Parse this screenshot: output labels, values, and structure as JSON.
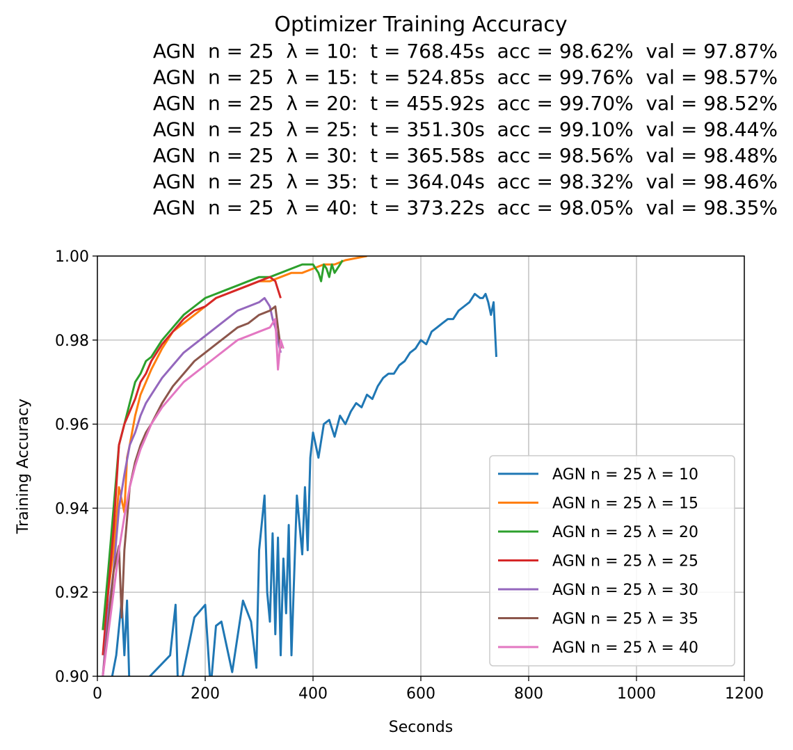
{
  "chart_data": {
    "type": "line",
    "title": "Optimizer Training Accuracy",
    "subtitle_lines": [
      "AGN  n = 25  λ = 10:  t = 768.45s  acc = 98.62%  val = 97.87%",
      "AGN  n = 25  λ = 15:  t = 524.85s  acc = 99.76%  val = 98.57%",
      "AGN  n = 25  λ = 20:  t = 455.92s  acc = 99.70%  val = 98.52%",
      "AGN  n = 25  λ = 25:  t = 351.30s  acc = 99.10%  val = 98.44%",
      "AGN  n = 25  λ = 30:  t = 365.58s  acc = 98.56%  val = 98.48%",
      "AGN  n = 25  λ = 35:  t = 364.04s  acc = 98.32%  val = 98.46%",
      "AGN  n = 25  λ = 40:  t = 373.22s  acc = 98.05%  val = 98.35%"
    ],
    "xlabel": "Seconds",
    "ylabel": "Training Accuracy",
    "xlim": [
      0,
      1200
    ],
    "ylim": [
      0.9,
      1.0
    ],
    "xticks": [
      0,
      200,
      400,
      600,
      800,
      1000,
      1200
    ],
    "xtick_labels": [
      "0",
      "200",
      "400",
      "600",
      "800",
      "1000",
      "1200"
    ],
    "yticks": [
      0.9,
      0.92,
      0.94,
      0.96,
      0.98,
      1.0
    ],
    "ytick_labels": [
      "0.90",
      "0.92",
      "0.94",
      "0.96",
      "0.98",
      "1.00"
    ],
    "grid": true,
    "legend_position": "lower-right",
    "series": [
      {
        "name": "AGN n = 25 λ = 10",
        "color": "#1f77b4",
        "x": [
          10,
          20,
          35,
          45,
          50,
          55,
          60,
          135,
          145,
          150,
          180,
          200,
          210,
          220,
          230,
          250,
          270,
          285,
          295,
          300,
          310,
          315,
          320,
          325,
          330,
          335,
          340,
          345,
          350,
          355,
          360,
          370,
          380,
          385,
          390,
          395,
          400,
          410,
          420,
          430,
          440,
          450,
          460,
          470,
          480,
          490,
          500,
          510,
          520,
          530,
          540,
          550,
          560,
          570,
          580,
          590,
          600,
          610,
          620,
          630,
          640,
          650,
          660,
          670,
          680,
          690,
          700,
          710,
          715,
          720,
          725,
          730,
          735,
          740
        ],
        "y": [
          0.895,
          0.895,
          0.905,
          0.918,
          0.905,
          0.918,
          0.895,
          0.905,
          0.917,
          0.895,
          0.914,
          0.917,
          0.897,
          0.912,
          0.913,
          0.901,
          0.918,
          0.913,
          0.902,
          0.93,
          0.943,
          0.92,
          0.913,
          0.934,
          0.91,
          0.933,
          0.905,
          0.928,
          0.915,
          0.936,
          0.905,
          0.943,
          0.929,
          0.945,
          0.93,
          0.952,
          0.958,
          0.952,
          0.96,
          0.961,
          0.957,
          0.962,
          0.96,
          0.963,
          0.965,
          0.964,
          0.967,
          0.966,
          0.969,
          0.971,
          0.972,
          0.972,
          0.974,
          0.975,
          0.977,
          0.978,
          0.98,
          0.979,
          0.982,
          0.983,
          0.984,
          0.985,
          0.985,
          0.987,
          0.988,
          0.989,
          0.991,
          0.99,
          0.99,
          0.991,
          0.989,
          0.986,
          0.989,
          0.976
        ]
      },
      {
        "name": "AGN n = 25 λ = 15",
        "color": "#ff7f0e",
        "x": [
          10,
          20,
          30,
          40,
          50,
          55,
          60,
          70,
          80,
          90,
          100,
          120,
          140,
          160,
          180,
          200,
          220,
          240,
          260,
          280,
          300,
          320,
          340,
          360,
          380,
          400,
          420,
          440,
          460,
          480,
          500
        ],
        "y": [
          0.911,
          0.92,
          0.93,
          0.945,
          0.939,
          0.952,
          0.955,
          0.962,
          0.967,
          0.97,
          0.973,
          0.978,
          0.982,
          0.984,
          0.986,
          0.988,
          0.99,
          0.991,
          0.992,
          0.993,
          0.994,
          0.994,
          0.995,
          0.996,
          0.996,
          0.997,
          0.998,
          0.998,
          0.999,
          0.9995,
          1.0
        ]
      },
      {
        "name": "AGN n = 25 λ = 20",
        "color": "#2ca02c",
        "x": [
          10,
          20,
          30,
          40,
          50,
          60,
          70,
          80,
          90,
          100,
          120,
          140,
          160,
          180,
          200,
          220,
          240,
          260,
          280,
          300,
          320,
          340,
          360,
          380,
          400,
          410,
          415,
          420,
          425,
          430,
          435,
          440,
          450,
          455
        ],
        "y": [
          0.911,
          0.925,
          0.94,
          0.955,
          0.96,
          0.965,
          0.97,
          0.972,
          0.975,
          0.976,
          0.98,
          0.983,
          0.986,
          0.988,
          0.99,
          0.991,
          0.992,
          0.993,
          0.994,
          0.995,
          0.995,
          0.996,
          0.997,
          0.998,
          0.998,
          0.996,
          0.994,
          0.998,
          0.997,
          0.995,
          0.998,
          0.996,
          0.998,
          0.999
        ]
      },
      {
        "name": "AGN n = 25 λ = 25",
        "color": "#d62728",
        "x": [
          10,
          20,
          30,
          40,
          50,
          60,
          70,
          80,
          90,
          100,
          120,
          140,
          160,
          180,
          200,
          220,
          240,
          260,
          280,
          300,
          320,
          330,
          335,
          340
        ],
        "y": [
          0.905,
          0.92,
          0.935,
          0.955,
          0.96,
          0.963,
          0.966,
          0.97,
          0.972,
          0.975,
          0.979,
          0.982,
          0.985,
          0.987,
          0.988,
          0.99,
          0.991,
          0.992,
          0.993,
          0.994,
          0.995,
          0.994,
          0.992,
          0.99
        ]
      },
      {
        "name": "AGN n = 25 λ = 30",
        "color": "#9467bd",
        "x": [
          10,
          20,
          30,
          40,
          50,
          60,
          70,
          80,
          90,
          100,
          120,
          140,
          160,
          180,
          200,
          220,
          240,
          260,
          280,
          300,
          310,
          320,
          325,
          330,
          335,
          340
        ],
        "y": [
          0.9,
          0.915,
          0.925,
          0.94,
          0.948,
          0.955,
          0.958,
          0.962,
          0.965,
          0.967,
          0.971,
          0.974,
          0.977,
          0.979,
          0.981,
          0.983,
          0.985,
          0.987,
          0.988,
          0.989,
          0.99,
          0.988,
          0.985,
          0.983,
          0.98,
          0.977
        ]
      },
      {
        "name": "AGN n = 25 λ = 35",
        "color": "#8c564b",
        "x": [
          10,
          20,
          30,
          40,
          45,
          50,
          60,
          70,
          80,
          90,
          100,
          120,
          140,
          160,
          180,
          200,
          220,
          240,
          260,
          280,
          300,
          320,
          330,
          335,
          340
        ],
        "y": [
          0.9,
          0.912,
          0.925,
          0.931,
          0.914,
          0.93,
          0.945,
          0.951,
          0.955,
          0.958,
          0.96,
          0.965,
          0.969,
          0.972,
          0.975,
          0.977,
          0.979,
          0.981,
          0.983,
          0.984,
          0.986,
          0.987,
          0.988,
          0.983,
          0.978
        ]
      },
      {
        "name": "AGN n = 25 λ = 40",
        "color": "#e377c2",
        "x": [
          10,
          20,
          30,
          40,
          50,
          60,
          70,
          80,
          90,
          100,
          120,
          140,
          160,
          180,
          200,
          220,
          240,
          260,
          280,
          300,
          320,
          330,
          335,
          340,
          345
        ],
        "y": [
          0.9,
          0.91,
          0.92,
          0.93,
          0.938,
          0.945,
          0.95,
          0.954,
          0.957,
          0.96,
          0.964,
          0.967,
          0.97,
          0.972,
          0.974,
          0.976,
          0.978,
          0.98,
          0.981,
          0.982,
          0.983,
          0.985,
          0.973,
          0.98,
          0.978
        ]
      }
    ]
  }
}
